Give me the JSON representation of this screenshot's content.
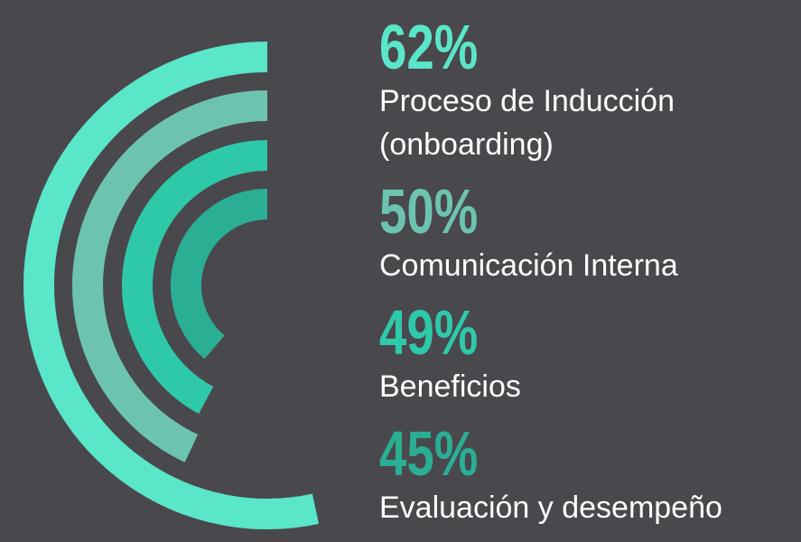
{
  "chart_data": {
    "type": "radial_bar",
    "categories": [
      "Proceso de Inducción (onboarding)",
      "Comunicación Interna",
      "Beneficios",
      "Evaluación y desempeño"
    ],
    "values": [
      62,
      50,
      49,
      45
    ],
    "value_labels": [
      "62%",
      "50%",
      "49%",
      "45%"
    ],
    "colors": [
      "#5ae6c8",
      "#6cc4b0",
      "#2ec9a8",
      "#2aae94"
    ]
  }
}
